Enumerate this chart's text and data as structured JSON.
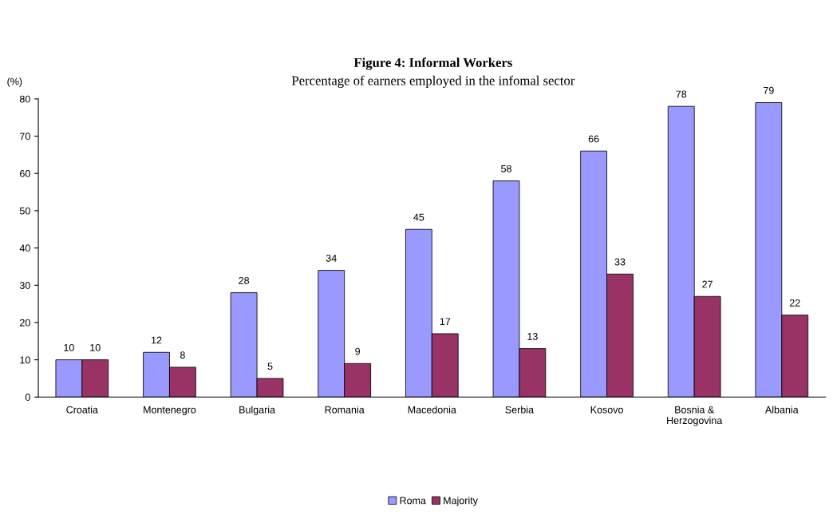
{
  "chart_data": {
    "type": "bar",
    "title": "Figure 4: Informal Workers",
    "subtitle": "Percentage of earners employed in the infomal sector",
    "ylabel": "(%)",
    "categories": [
      "Croatia",
      "Montenegro",
      "Bulgaria",
      "Romania",
      "Macedonia",
      "Serbia",
      "Kosovo",
      "Bosnia &\nHerzogovina",
      "Albania"
    ],
    "series": [
      {
        "name": "Roma",
        "color": "#9999ff",
        "values": [
          10,
          12,
          28,
          34,
          45,
          58,
          66,
          78,
          79
        ]
      },
      {
        "name": "Majority",
        "color": "#993366",
        "values": [
          10,
          8,
          5,
          9,
          17,
          13,
          33,
          27,
          22
        ]
      }
    ],
    "ylim": [
      0,
      80
    ],
    "yticks": [
      0,
      10,
      20,
      30,
      40,
      50,
      60,
      70,
      80
    ],
    "grid": false,
    "legend": "bottom",
    "data_labels": true
  }
}
